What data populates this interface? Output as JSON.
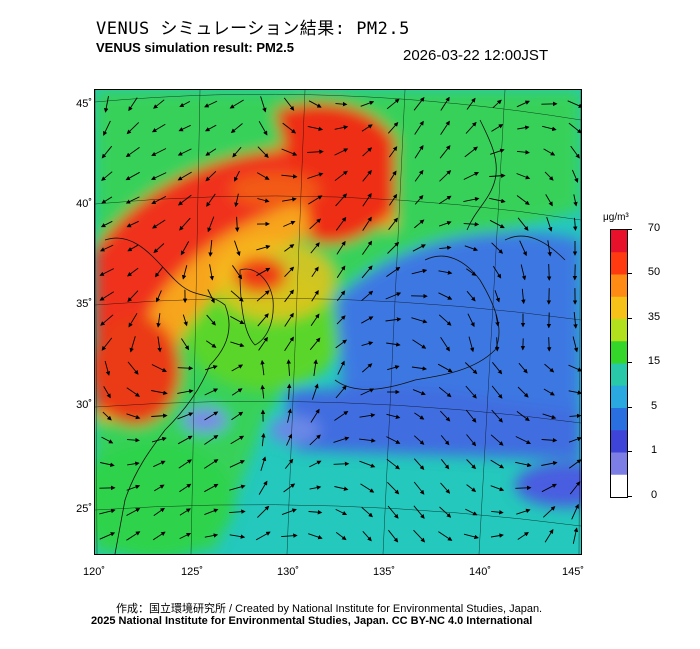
{
  "header": {
    "title_jp": "VENUS シミュレーション結果: PM2.5",
    "title_en": "VENUS simulation result: PM2.5",
    "timestamp": "2026-03-22 12:00JST"
  },
  "map": {
    "lat_labels": [
      "45˚",
      "40˚",
      "35˚",
      "30˚",
      "25˚"
    ],
    "lon_labels": [
      "120˚",
      "125˚",
      "130˚",
      "135˚",
      "140˚",
      "145˚"
    ],
    "land_ocean_background": "#22c7c2",
    "high_concentration_color": "#f02a14",
    "low_concentration_color": "#3a74e6"
  },
  "colorbar": {
    "unit": "μg/m³",
    "labels": [
      "70",
      "50",
      "35",
      "15",
      "5",
      "1",
      "0"
    ],
    "colors": [
      "#e8112b",
      "#ff3a10",
      "#ff8a14",
      "#f6c21a",
      "#b2e01c",
      "#35d62a",
      "#27c9a8",
      "#2aa8e0",
      "#2a6fe0",
      "#3f44d8",
      "#7d7de6",
      "#ffffff"
    ]
  },
  "credits": {
    "line1": "作成：国立環境研究所 / Created by National Institute for Environmental Studies, Japan.",
    "line2": "2025 National Institute for Environmental Studies, Japan. CC BY-NC 4.0 International"
  }
}
